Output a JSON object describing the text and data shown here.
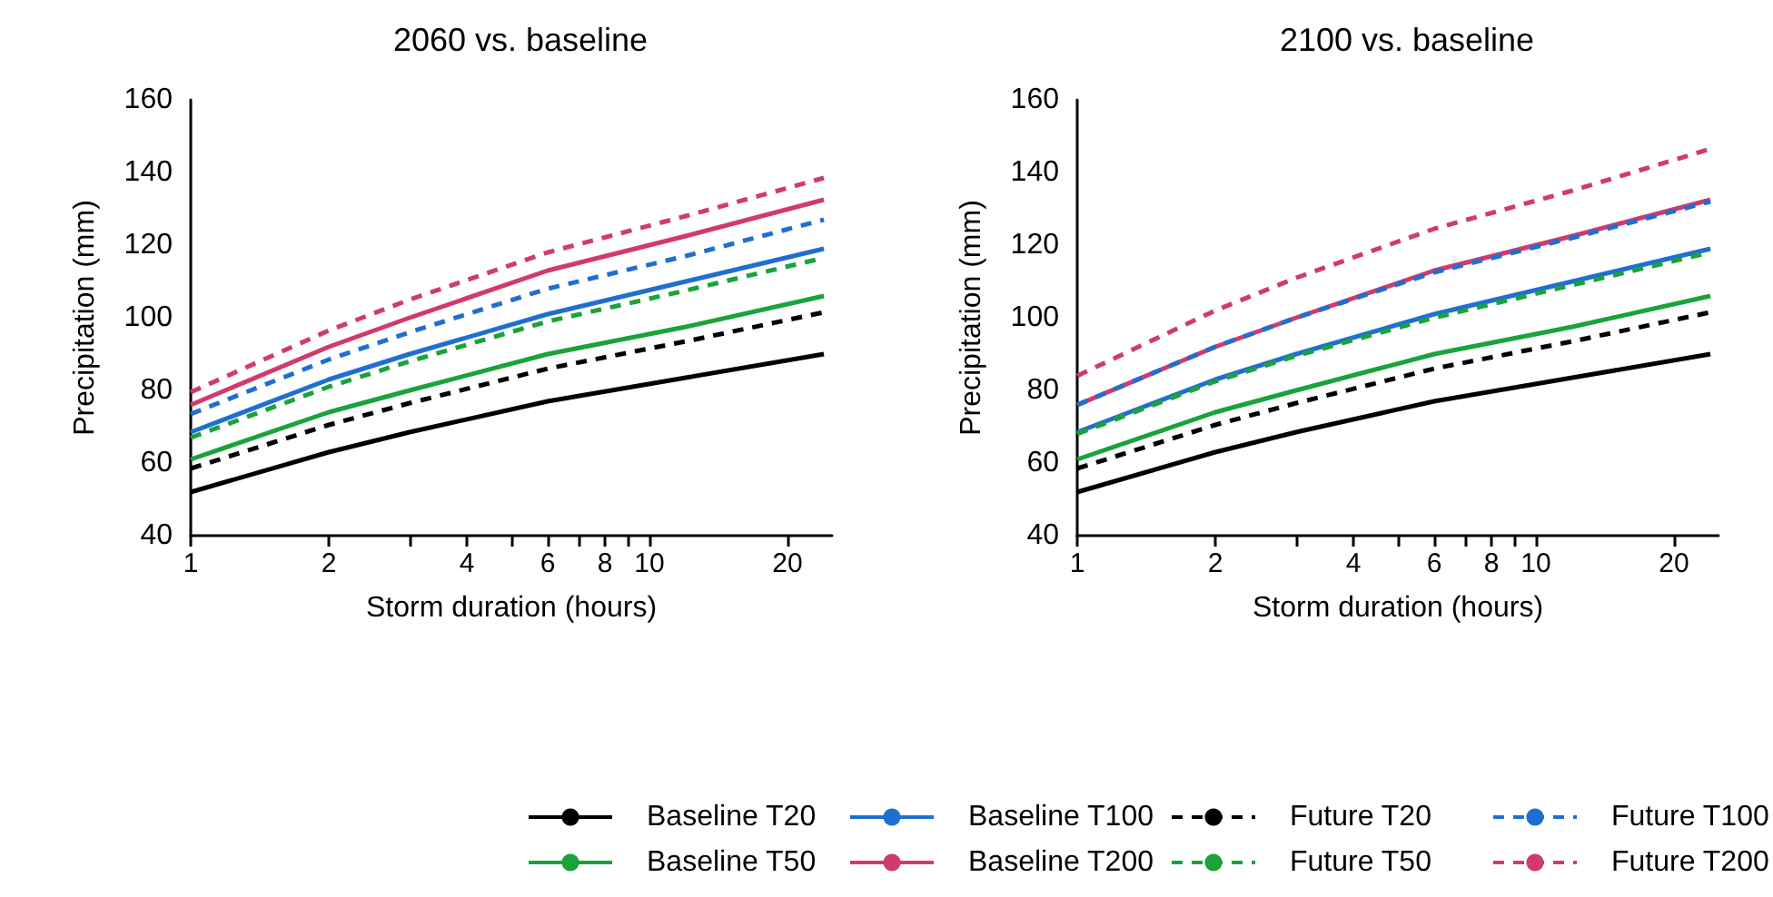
{
  "chart_data": [
    {
      "type": "line",
      "title": "2060 vs. baseline",
      "xlabel": "Storm duration (hours)",
      "ylabel": "Precipitation (mm)",
      "log": "x",
      "x": [
        1,
        2,
        3,
        6,
        12,
        24
      ],
      "xlim": [
        1,
        25
      ],
      "xticks": [
        1,
        2,
        {
          "value": 3,
          "label": null
        },
        4,
        {
          "value": 5,
          "label": null
        },
        6,
        {
          "value": 7,
          "label": null
        },
        8,
        {
          "value": 9,
          "label": null
        },
        10,
        20
      ],
      "ylim": [
        40,
        160
      ],
      "yticks": [
        40,
        60,
        80,
        100,
        120,
        140,
        160
      ],
      "grid": false,
      "legend": "bottom",
      "marker": "none",
      "line_style": "solid",
      "series": [
        {
          "name": "Baseline T20",
          "color": "#000000",
          "values": [
            52,
            63,
            68.5,
            77,
            83.5,
            90
          ]
        },
        {
          "name": "Baseline T50",
          "color": "#1aa33a",
          "values": [
            61,
            74,
            80,
            90,
            97.5,
            106
          ]
        },
        {
          "name": "Baseline T100",
          "color": "#1f6fd1",
          "values": [
            68.5,
            83,
            90,
            101,
            110,
            119
          ]
        },
        {
          "name": "Baseline T200",
          "color": "#d13a6e",
          "values": [
            76,
            92,
            100,
            113,
            122.5,
            132.5
          ]
        },
        {
          "name": "Future T20",
          "color": "#000000",
          "line_style": "dashed",
          "values": [
            58.5,
            70.5,
            76.5,
            86,
            93.5,
            101.5
          ]
        },
        {
          "name": "Future T50",
          "color": "#1aa33a",
          "line_style": "dashed",
          "values": [
            67,
            81,
            88,
            99,
            107.5,
            116.5
          ]
        },
        {
          "name": "Future T100",
          "color": "#1f6fd1",
          "line_style": "dashed",
          "values": [
            73.5,
            88.5,
            96,
            108,
            117,
            127
          ]
        },
        {
          "name": "Future T200",
          "color": "#d13a6e",
          "line_style": "dashed",
          "values": [
            79.5,
            96.5,
            105,
            118,
            128,
            138.5
          ]
        }
      ]
    },
    {
      "type": "line",
      "title": "2100 vs. baseline",
      "xlabel": "Storm duration (hours)",
      "ylabel": "Precipitation (mm)",
      "log": "x",
      "x": [
        1,
        2,
        3,
        6,
        12,
        24
      ],
      "xlim": [
        1,
        25
      ],
      "xticks": [
        1,
        2,
        {
          "value": 3,
          "label": null
        },
        4,
        {
          "value": 5,
          "label": null
        },
        6,
        {
          "value": 7,
          "label": null
        },
        8,
        {
          "value": 9,
          "label": null
        },
        10,
        20
      ],
      "ylim": [
        40,
        160
      ],
      "yticks": [
        40,
        60,
        80,
        100,
        120,
        140,
        160
      ],
      "grid": false,
      "legend": "bottom",
      "marker": "none",
      "line_style": "solid",
      "series": [
        {
          "name": "Baseline T20",
          "color": "#000000",
          "values": [
            52,
            63,
            68.5,
            77,
            83.5,
            90
          ]
        },
        {
          "name": "Baseline T50",
          "color": "#1aa33a",
          "values": [
            61,
            74,
            80,
            90,
            97.5,
            106
          ]
        },
        {
          "name": "Baseline T100",
          "color": "#1f6fd1",
          "values": [
            68.5,
            83,
            90,
            101,
            110,
            119
          ]
        },
        {
          "name": "Baseline T200",
          "color": "#d13a6e",
          "values": [
            76,
            92,
            100,
            113,
            122.5,
            132.5
          ]
        },
        {
          "name": "Future T20",
          "color": "#000000",
          "line_style": "dashed",
          "values": [
            58.5,
            70.5,
            76.5,
            86,
            93.5,
            101.5
          ]
        },
        {
          "name": "Future T50",
          "color": "#1aa33a",
          "line_style": "dashed",
          "values": [
            68,
            82.5,
            89.5,
            100,
            109,
            118
          ]
        },
        {
          "name": "Future T100",
          "color": "#1f6fd1",
          "line_style": "dashed",
          "values": [
            76,
            92,
            100,
            112.5,
            122,
            132
          ]
        },
        {
          "name": "Future T200",
          "color": "#d13a6e",
          "line_style": "dashed",
          "values": [
            84,
            102,
            111,
            124.5,
            135,
            146.5
          ]
        }
      ]
    }
  ]
}
